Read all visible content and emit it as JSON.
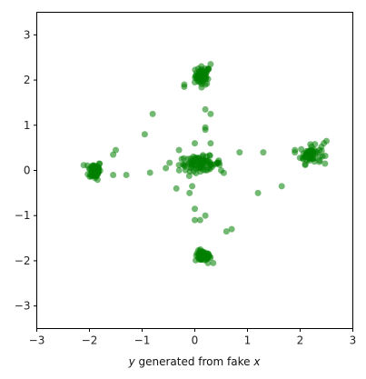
{
  "chart_data": {
    "type": "scatter",
    "xlabel_parts": [
      "y",
      " generated from fake ",
      "x"
    ],
    "xlabel": "y generated from fake x",
    "ylabel": "",
    "title": "",
    "xlim": [
      -3,
      3
    ],
    "ylim": [
      -3.5,
      3.5
    ],
    "xticks": [
      "-3",
      "-2",
      "-1",
      "0",
      "1",
      "2",
      "3"
    ],
    "yticks": [
      "-3",
      "-2",
      "-1",
      "0",
      "1",
      "2",
      "3"
    ],
    "grid": false,
    "marker_color": "#008000",
    "marker_alpha": 0.55,
    "clusters": [
      {
        "center": [
          0.15,
          2.1
        ],
        "spread": [
          0.07,
          0.1
        ],
        "count": 60
      },
      {
        "center": [
          0.15,
          -1.9
        ],
        "spread": [
          0.07,
          0.06
        ],
        "count": 55
      },
      {
        "center": [
          -1.9,
          0.0
        ],
        "spread": [
          0.06,
          0.1
        ],
        "count": 65
      },
      {
        "center": [
          2.2,
          0.35
        ],
        "spread": [
          0.1,
          0.1
        ],
        "count": 60
      },
      {
        "center": [
          0.1,
          0.15
        ],
        "spread": [
          0.2,
          0.08
        ],
        "count": 90
      }
    ],
    "points": [
      [
        -0.2,
        1.9
      ],
      [
        -0.2,
        1.85
      ],
      [
        0.3,
        1.25
      ],
      [
        0.2,
        1.35
      ],
      [
        0.2,
        0.95
      ],
      [
        0.2,
        0.9
      ],
      [
        -0.95,
        0.8
      ],
      [
        -0.8,
        1.25
      ],
      [
        -0.3,
        0.45
      ],
      [
        0.3,
        0.6
      ],
      [
        0.0,
        0.6
      ],
      [
        -1.5,
        0.45
      ],
      [
        -1.55,
        0.35
      ],
      [
        -1.3,
        -0.1
      ],
      [
        -1.55,
        -0.1
      ],
      [
        -0.85,
        -0.05
      ],
      [
        -0.55,
        0.05
      ],
      [
        -0.35,
        -0.4
      ],
      [
        -0.1,
        -0.5
      ],
      [
        -0.05,
        -0.35
      ],
      [
        0.0,
        -0.85
      ],
      [
        0.0,
        -1.1
      ],
      [
        0.1,
        -1.1
      ],
      [
        0.2,
        -1.0
      ],
      [
        0.6,
        -1.35
      ],
      [
        0.7,
        -1.3
      ],
      [
        0.5,
        0.0
      ],
      [
        0.85,
        0.4
      ],
      [
        1.3,
        0.4
      ],
      [
        1.2,
        -0.5
      ],
      [
        1.65,
        -0.35
      ],
      [
        1.9,
        0.45
      ],
      [
        1.9,
        0.4
      ],
      [
        2.5,
        0.65
      ],
      [
        2.45,
        0.6
      ],
      [
        0.0,
        1.95
      ],
      [
        0.3,
        2.35
      ],
      [
        0.25,
        -2.05
      ],
      [
        0.35,
        -2.05
      ]
    ]
  }
}
